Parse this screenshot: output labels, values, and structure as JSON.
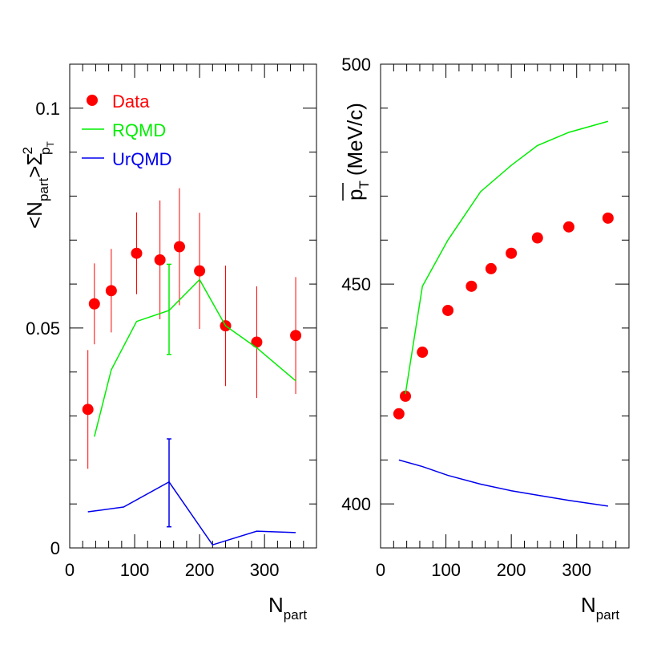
{
  "chart_data": [
    {
      "type": "scatter",
      "panel": "left",
      "xlabel": "N",
      "xlabel_sub": "part",
      "ylabel_parts": [
        "<N",
        "part",
        ">Σ",
        "2",
        "p",
        "T"
      ],
      "xlim": [
        0,
        380
      ],
      "ylim": [
        0,
        0.11
      ],
      "x_ticks": [
        "0",
        "100",
        "200",
        "300"
      ],
      "y_ticks": [
        "0",
        "0.05",
        "0.1"
      ],
      "legend": {
        "position": "top-left",
        "entries": [
          "Data",
          "RQMD",
          "UrQMD"
        ]
      },
      "series": [
        {
          "name": "Data",
          "kind": "points",
          "color": "#ff0000",
          "x": [
            28,
            38,
            64,
            103,
            139,
            169,
            200,
            240,
            288,
            348
          ],
          "y": [
            0.0315,
            0.0555,
            0.0585,
            0.067,
            0.0655,
            0.0685,
            0.063,
            0.0505,
            0.0468,
            0.0483
          ],
          "yerr": [
            0.0135,
            0.0092,
            0.0095,
            0.0093,
            0.0135,
            0.0133,
            0.0132,
            0.0137,
            0.0127,
            0.0133
          ],
          "xerr": [
            5,
            0,
            0,
            0,
            0,
            0,
            0,
            0,
            0,
            0
          ]
        },
        {
          "name": "RQMD",
          "kind": "line",
          "color": "#00ee00",
          "x": [
            38,
            64,
            103,
            153,
            200,
            240,
            288,
            348
          ],
          "y": [
            0.0253,
            0.0405,
            0.0515,
            0.054,
            0.061,
            0.0505,
            0.0455,
            0.038
          ],
          "errorbar": {
            "x": 153,
            "low": 0.044,
            "high": 0.0645
          }
        },
        {
          "name": "UrQMD",
          "kind": "line",
          "color": "#0000ee",
          "x": [
            28,
            83,
            153,
            220,
            288,
            348
          ],
          "y": [
            0.0082,
            0.0093,
            0.015,
            0.0007,
            0.0038,
            0.0035
          ],
          "errorbar": {
            "x": 153,
            "low": 0.0048,
            "high": 0.0248
          }
        }
      ]
    },
    {
      "type": "scatter",
      "panel": "right",
      "xlabel": "N",
      "xlabel_sub": "part",
      "ylabel_parts": [
        "p",
        "T",
        "(MeV/c)"
      ],
      "xlim": [
        0,
        380
      ],
      "ylim": [
        390,
        500
      ],
      "x_ticks": [
        "0",
        "100",
        "200",
        "300"
      ],
      "y_ticks": [
        "400",
        "450",
        "500"
      ],
      "series": [
        {
          "name": "Data",
          "kind": "points",
          "color": "#ff0000",
          "x": [
            28,
            38,
            64,
            103,
            139,
            169,
            200,
            240,
            288,
            348
          ],
          "y": [
            420.5,
            424.5,
            434.5,
            444,
            449.5,
            453.5,
            457,
            460.5,
            463,
            465
          ],
          "xerr": [
            5,
            0,
            0,
            0,
            0,
            0,
            0,
            0,
            0,
            0
          ]
        },
        {
          "name": "RQMD",
          "kind": "line",
          "color": "#00ee00",
          "x": [
            38,
            64,
            103,
            153,
            200,
            240,
            288,
            348
          ],
          "y": [
            425,
            449.5,
            460,
            471,
            477,
            481.5,
            484.5,
            487
          ]
        },
        {
          "name": "UrQMD",
          "kind": "line",
          "color": "#0000ee",
          "x": [
            28,
            64,
            103,
            153,
            200,
            240,
            288,
            348
          ],
          "y": [
            410,
            408.5,
            406.5,
            404.5,
            403,
            402,
            400.8,
            399.5
          ]
        }
      ]
    }
  ]
}
